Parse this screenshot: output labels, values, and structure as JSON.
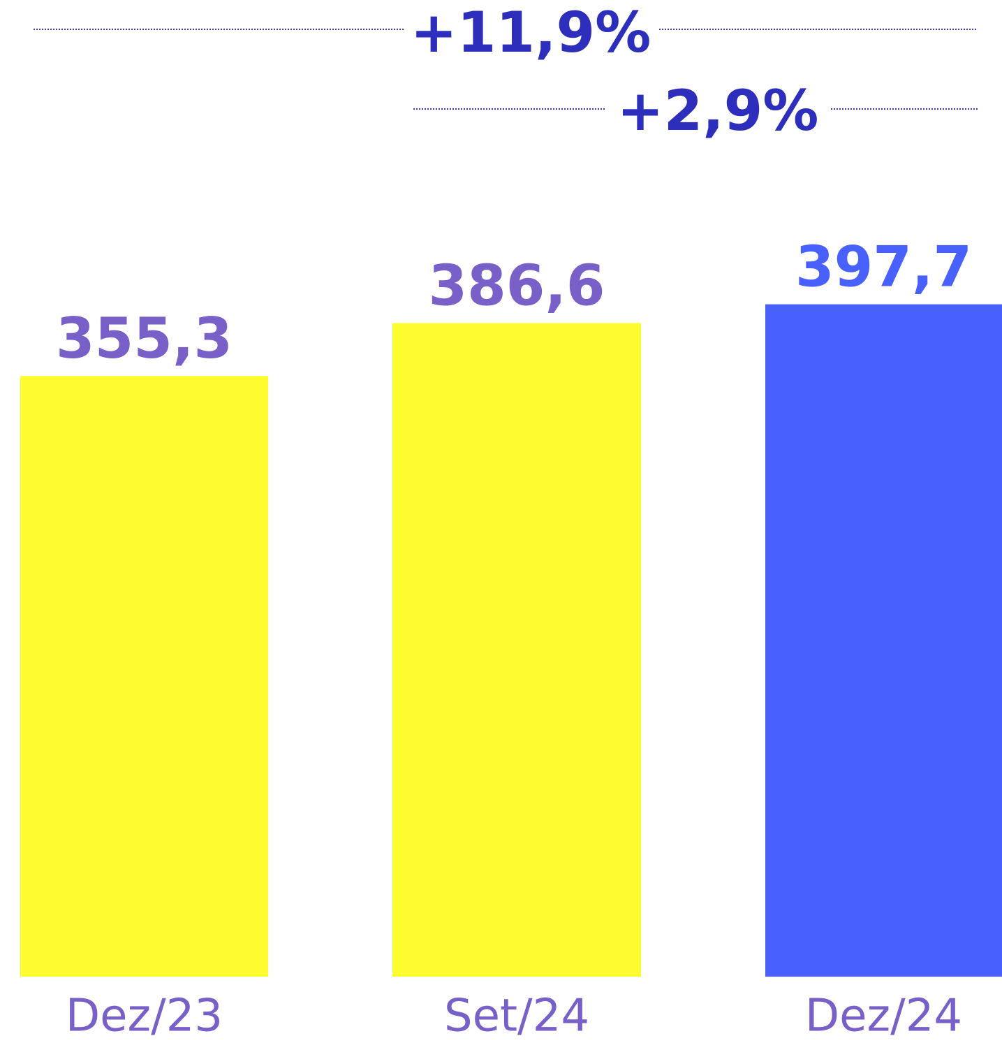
{
  "chart_data": {
    "type": "bar",
    "categories": [
      "Dez/23",
      "Set/24",
      "Dez/24"
    ],
    "values": [
      355.3,
      386.6,
      397.7
    ],
    "value_labels": [
      "355,3",
      "386,6",
      "397,7"
    ],
    "colors": [
      "#fcfc2e",
      "#fcfc2e",
      "#4860fc"
    ],
    "ylim": [
      0,
      400
    ],
    "annotations": [
      "+11,9%",
      "+2,9%"
    ]
  }
}
